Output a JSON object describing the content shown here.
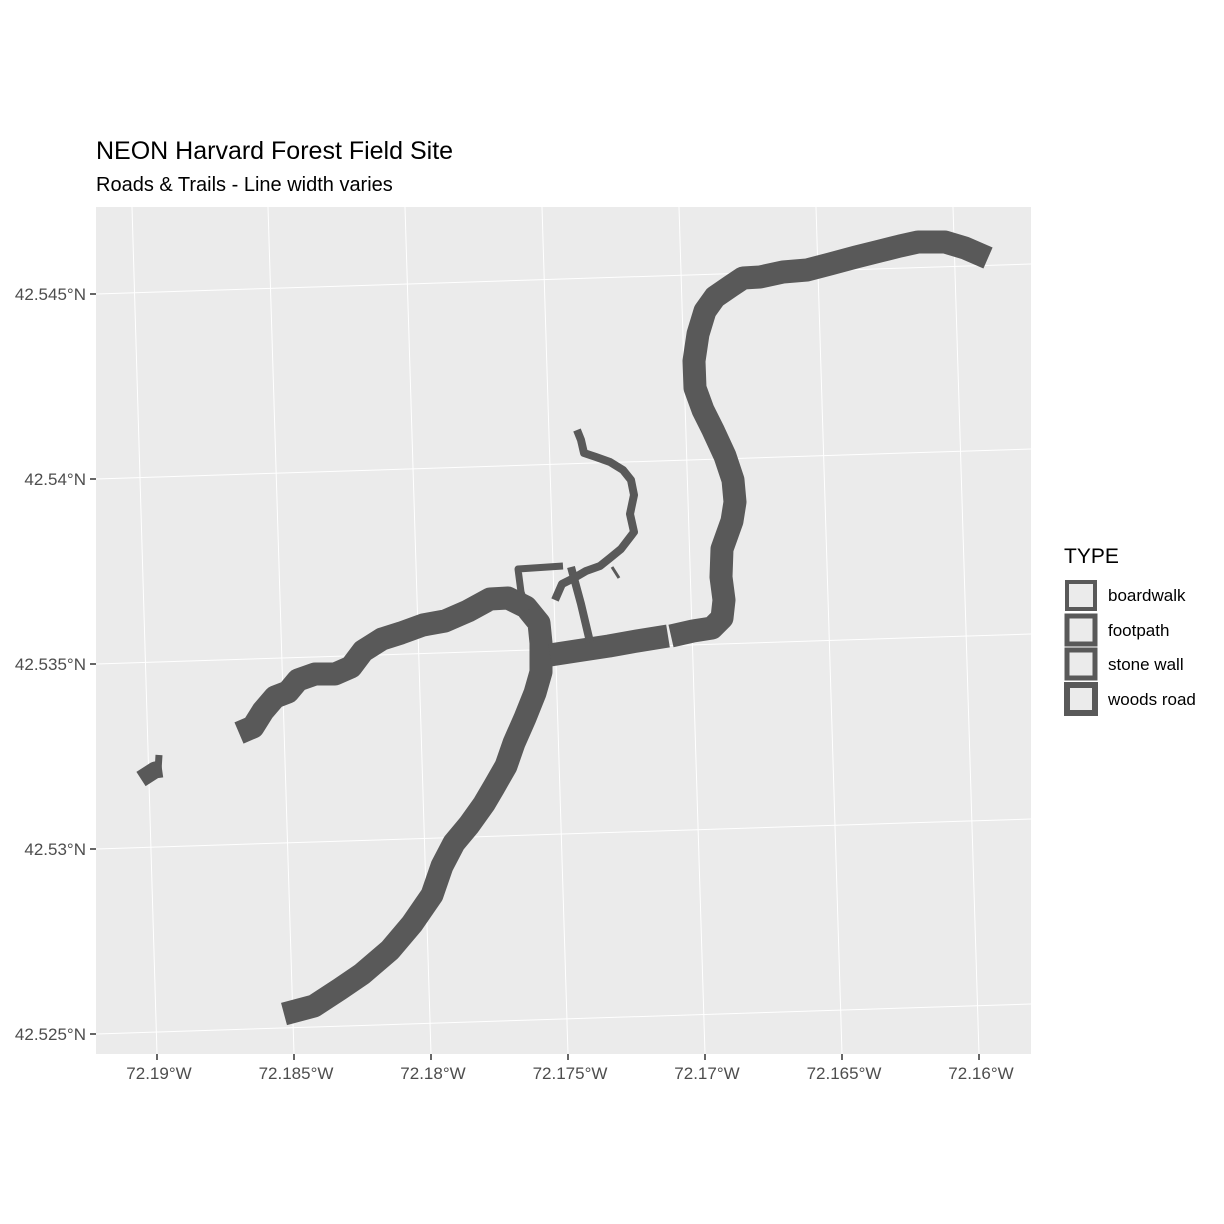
{
  "title": "NEON Harvard Forest Field Site",
  "subtitle": "Roads & Trails - Line width varies",
  "map": {
    "panel_background": "#ebebeb",
    "gridline_color": "#ffffff",
    "line_color": "#595959",
    "x_ticks": [
      "72.19°W",
      "72.185°W",
      "72.18°W",
      "72.175°W",
      "72.17°W",
      "72.165°W",
      "72.16°W"
    ],
    "y_ticks": [
      "42.545°N",
      "42.54°N",
      "42.535°N",
      "42.53°N",
      "42.525°N"
    ]
  },
  "legend": {
    "title": "TYPE",
    "items": [
      "boardwalk",
      "footpath",
      "stone wall",
      "woods road"
    ]
  },
  "chart_data": {
    "type": "map",
    "title": "NEON Harvard Forest Field Site",
    "subtitle": "Roads & Trails - Line width varies",
    "xlim": [
      -72.1915,
      -72.1578
    ],
    "ylim": [
      42.5245,
      42.5468
    ],
    "x_ticks": [
      "72.19°W",
      "72.185°W",
      "72.18°W",
      "72.175°W",
      "72.17°W",
      "72.165°W",
      "72.16°W"
    ],
    "y_ticks": [
      "42.545°N",
      "42.54°N",
      "42.535°N",
      "42.53°N",
      "42.525°N"
    ],
    "legend_title": "TYPE",
    "legend_placement": "right",
    "grid": true,
    "features": [
      {
        "type": "woods road",
        "coords": [
          [
            -72.1853,
            42.5252
          ],
          [
            -72.1843,
            42.5257
          ],
          [
            -72.1828,
            42.5267
          ],
          [
            -72.1817,
            42.5278
          ],
          [
            -72.1808,
            42.5292
          ],
          [
            -72.1803,
            42.5303
          ],
          [
            -72.1795,
            42.5312
          ],
          [
            -72.1785,
            42.5325
          ],
          [
            -72.1778,
            42.5336
          ],
          [
            -72.1769,
            42.5351
          ],
          [
            -72.1764,
            42.5361
          ],
          [
            -72.1762,
            42.5368
          ],
          [
            -72.177,
            42.5373
          ],
          [
            -72.1782,
            42.5372
          ],
          [
            -72.1793,
            42.5367
          ],
          [
            -72.1806,
            42.5363
          ],
          [
            -72.182,
            42.5357
          ],
          [
            -72.1832,
            42.535
          ],
          [
            -72.1845,
            42.5346
          ],
          [
            -72.1855,
            42.534
          ],
          [
            -72.1866,
            42.5337
          ],
          [
            -72.1874,
            42.533
          ]
        ]
      },
      {
        "type": "woods road",
        "coords": [
          [
            -72.1905,
            42.532
          ],
          [
            -72.1898,
            42.5324
          ],
          [
            -72.1896,
            42.5328
          ]
        ]
      },
      {
        "type": "woods road",
        "coords": [
          [
            -72.1763,
            42.5349
          ],
          [
            -72.1742,
            42.5351
          ],
          [
            -72.1718,
            42.5354
          ],
          [
            -72.17,
            42.5356
          ],
          [
            -72.1688,
            42.5363
          ],
          [
            -72.1691,
            42.5375
          ],
          [
            -72.1688,
            42.539
          ],
          [
            -72.1682,
            42.5405
          ],
          [
            -72.1688,
            42.542
          ],
          [
            -72.1696,
            42.5432
          ],
          [
            -72.1695,
            42.5445
          ],
          [
            -72.169,
            42.5453
          ],
          [
            -72.1675,
            42.546
          ],
          [
            -72.166,
            42.5463
          ],
          [
            -72.164,
            42.5467
          ],
          [
            -72.162,
            42.547
          ],
          [
            -72.1605,
            42.5468
          ]
        ]
      },
      {
        "type": "footpath",
        "coords": [
          [
            -72.1748,
            42.5354
          ],
          [
            -72.1752,
            42.5368
          ],
          [
            -72.1756,
            42.5377
          ]
        ]
      },
      {
        "type": "footpath",
        "coords": [
          [
            -72.1774,
            42.5368
          ],
          [
            -72.1776,
            42.5377
          ],
          [
            -72.1762,
            42.5378
          ]
        ]
      },
      {
        "type": "footpath",
        "coords": [
          [
            -72.1758,
            42.5365
          ],
          [
            -72.1752,
            42.5371
          ],
          [
            -72.1743,
            42.5374
          ],
          [
            -72.1733,
            42.5383
          ],
          [
            -72.1736,
            42.5395
          ],
          [
            -72.1743,
            42.5401
          ],
          [
            -72.1755,
            42.5405
          ],
          [
            -72.1759,
            42.5409
          ],
          [
            -72.1759,
            42.5415
          ]
        ]
      },
      {
        "type": "footpath",
        "coords": [
          [
            -72.1738,
            42.5377
          ],
          [
            -72.1733,
            42.5373
          ]
        ]
      }
    ]
  }
}
